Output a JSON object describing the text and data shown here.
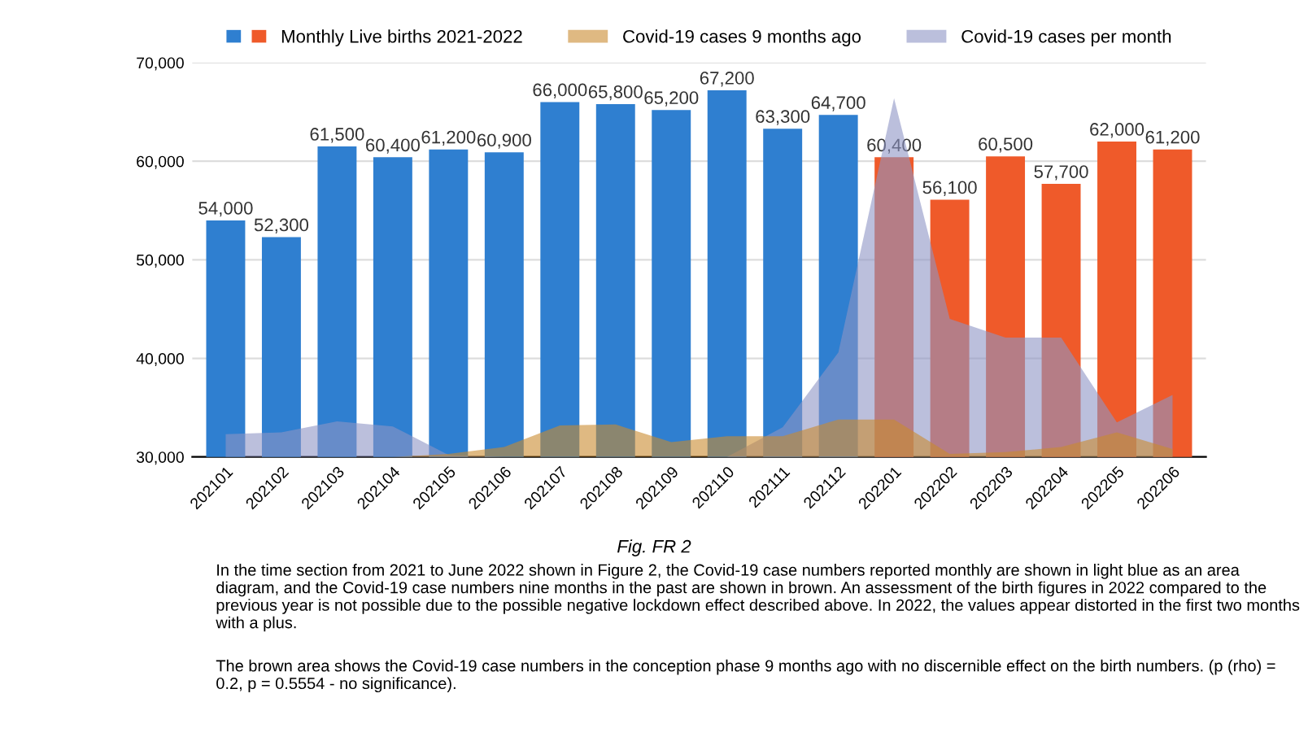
{
  "chart_data": {
    "type": "bar",
    "categories": [
      "202101",
      "202102",
      "202103",
      "202104",
      "202105",
      "202106",
      "202107",
      "202108",
      "202109",
      "202110",
      "202111",
      "202112",
      "202201",
      "202202",
      "202203",
      "202204",
      "202205",
      "202206"
    ],
    "series": [
      {
        "name": "Monthly Live births 2021-2022",
        "colors": [
          "#2f7fd0",
          "#2f7fd0",
          "#2f7fd0",
          "#2f7fd0",
          "#2f7fd0",
          "#2f7fd0",
          "#2f7fd0",
          "#2f7fd0",
          "#2f7fd0",
          "#2f7fd0",
          "#2f7fd0",
          "#2f7fd0",
          "#ef5a2a",
          "#ef5a2a",
          "#ef5a2a",
          "#ef5a2a",
          "#ef5a2a",
          "#ef5a2a"
        ],
        "values": [
          54000,
          52300,
          61500,
          60400,
          61200,
          60900,
          66000,
          65800,
          65200,
          67200,
          63300,
          64700,
          60400,
          56100,
          60500,
          57700,
          62000,
          61200
        ],
        "value_labels": [
          "54,000",
          "52,300",
          "61,500",
          "60,400",
          "61,200",
          "60,900",
          "66,000",
          "65,800",
          "65,200",
          "67,200",
          "63,300",
          "64,700",
          "60,400",
          "56,100",
          "60,500",
          "57,700",
          "62,000",
          "61,200"
        ]
      },
      {
        "name": "Covid-19 cases 9 months ago",
        "type": "area",
        "color": "#c98a2e",
        "values": [
          30000,
          30000,
          30000,
          30000,
          30300,
          31000,
          33200,
          33300,
          31500,
          32100,
          32100,
          33800,
          33800,
          30300,
          30500,
          31000,
          32500,
          30800
        ]
      },
      {
        "name": "Covid-19 cases per month",
        "type": "area",
        "color": "#8e94c4",
        "values": [
          32300,
          32500,
          33600,
          33100,
          30200,
          30000,
          30000,
          30000,
          30000,
          30000,
          33000,
          40600,
          66400,
          44000,
          42100,
          42100,
          33500,
          36300
        ]
      }
    ],
    "ylim": [
      30000,
      70000
    ],
    "yticks": [
      {
        "value": 30000,
        "label": "30,000"
      },
      {
        "value": 40000,
        "label": "40,000"
      },
      {
        "value": 50000,
        "label": "50,000"
      },
      {
        "value": 60000,
        "label": "60,000"
      },
      {
        "value": 70000,
        "label": "70,000"
      }
    ],
    "grid": "y",
    "legend": "top",
    "annotations": [
      "Fig. FR 2",
      "In the time section from 2021 to June 2022 shown in Figure 2, the Covid-19 case numbers reported monthly are shown in light blue as an area diagram, and the Covid-19 case numbers nine months in the past are shown in brown. An assessment of the birth figures in 2022 compared to the previous year is not possible due to the possible negative lockdown effect described above. In 2022, the values appear distorted in the first two months with a plus.",
      "The brown area shows the Covid-19 case numbers in the conception phase 9 months ago with no discernible effect on the birth numbers. (p (rho) = 0.2, p = 0.5554 - no significance)."
    ]
  }
}
